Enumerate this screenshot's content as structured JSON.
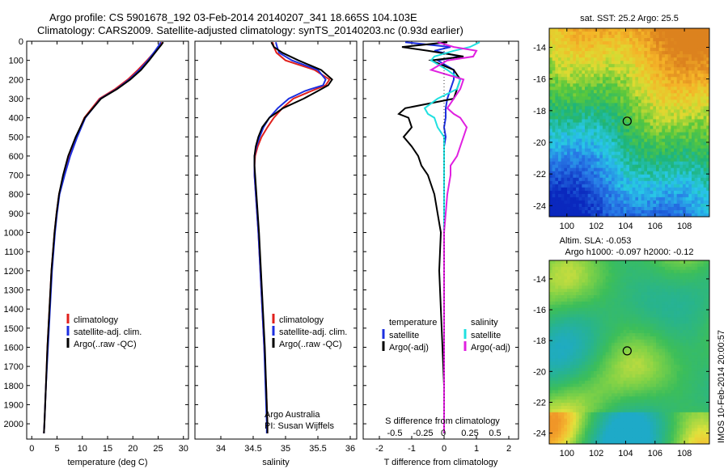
{
  "figure": {
    "title_line1": "Argo profile: CS 5901678_192 03-Feb-2014 20140207_341 18.665S 104.103E",
    "title_line2": "Climatology: CARS2009. Satellite-adjusted climatology: synTS_20140203.nc (0.93d earlier)",
    "vertical_credit": "IMOS 10-Feb-2014 20:00:57"
  },
  "colors": {
    "clim": "#e0201c",
    "sat": "#1c2fe0",
    "argo": "#000000",
    "cyan": "#20e0e0",
    "magenta": "#e020e0"
  },
  "chart_data": [
    {
      "type": "line",
      "id": "temperature",
      "xlabel": "temperature (deg C)",
      "xlim": [
        -1,
        31
      ],
      "xticks": [
        0,
        5,
        10,
        15,
        20,
        25,
        30
      ],
      "ylim": [
        0,
        2080
      ],
      "yticks": [
        0,
        100,
        200,
        300,
        400,
        500,
        600,
        700,
        800,
        900,
        1000,
        1100,
        1200,
        1300,
        1400,
        1500,
        1600,
        1700,
        1800,
        1900,
        2000
      ],
      "legend": [
        "climatology",
        "satellite-adj. clim.",
        "Argo(..raw -QC)"
      ],
      "depth": [
        5,
        20,
        50,
        100,
        150,
        200,
        250,
        300,
        400,
        500,
        600,
        700,
        800,
        900,
        1000,
        1200,
        1400,
        1600,
        1800,
        2000,
        2050
      ],
      "series": [
        {
          "name": "climatology",
          "color": "clim",
          "values": [
            25.8,
            25.5,
            24.5,
            22.8,
            21,
            19,
            16.5,
            13.4,
            10.4,
            8.8,
            7.4,
            6.3,
            5.4,
            4.9,
            4.5,
            3.9,
            3.5,
            3.1,
            2.8,
            2.5,
            2.4
          ]
        },
        {
          "name": "satellite-adj. clim.",
          "color": "sat",
          "values": [
            25.5,
            25.2,
            24.4,
            23,
            21.3,
            19.3,
            16.8,
            13.6,
            10.6,
            9,
            7.6,
            6.5,
            5.5,
            5,
            4.6,
            4,
            3.6,
            3.2,
            2.8,
            2.5,
            2.4
          ]
        },
        {
          "name": "Argo(..raw -QC)",
          "color": "argo",
          "values": [
            26,
            25.6,
            24.7,
            23.2,
            21.6,
            19.5,
            16.9,
            13.7,
            10.5,
            8.7,
            7.2,
            6.2,
            5.4,
            4.9,
            4.5,
            3.9,
            3.5,
            3.1,
            2.8,
            2.5,
            2.4
          ]
        }
      ]
    },
    {
      "type": "line",
      "id": "salinity",
      "xlabel": "salinity",
      "xlim": [
        33.6,
        36.1
      ],
      "xticks": [
        34,
        34.5,
        35,
        35.5,
        36
      ],
      "ylim": [
        0,
        2080
      ],
      "legend": [
        "climatology",
        "satellite-adj. clim.",
        "Argo(..raw -QC)"
      ],
      "annotation": [
        "Argo Australia",
        "PI: Susan Wijffels"
      ],
      "depth": [
        5,
        30,
        60,
        100,
        150,
        200,
        230,
        260,
        300,
        350,
        400,
        450,
        500,
        550,
        600,
        650,
        700,
        800,
        900,
        1000,
        1200,
        1400,
        1600,
        1800,
        2000,
        2050
      ],
      "series": [
        {
          "name": "climatology",
          "color": "clim",
          "values": [
            34.8,
            34.82,
            34.86,
            35.0,
            35.45,
            35.68,
            35.62,
            35.4,
            35.12,
            34.95,
            34.82,
            34.72,
            34.63,
            34.57,
            34.53,
            34.52,
            34.52,
            34.54,
            34.56,
            34.58,
            34.61,
            34.64,
            34.67,
            34.7,
            34.72,
            34.72
          ]
        },
        {
          "name": "satellite-adj. clim.",
          "color": "sat",
          "values": [
            34.85,
            34.87,
            34.9,
            35.1,
            35.5,
            35.62,
            35.58,
            35.3,
            35.05,
            34.88,
            34.75,
            34.66,
            34.6,
            34.55,
            34.52,
            34.52,
            34.52,
            34.54,
            34.56,
            34.58,
            34.61,
            34.64,
            34.67,
            34.69,
            34.71,
            34.71
          ]
        },
        {
          "name": "Argo(..raw -QC)",
          "color": "argo",
          "values": [
            34.78,
            34.82,
            34.95,
            35.2,
            35.55,
            35.72,
            35.66,
            35.5,
            35.28,
            34.96,
            34.75,
            34.64,
            34.58,
            34.54,
            34.52,
            34.52,
            34.53,
            34.55,
            34.57,
            34.59,
            34.62,
            34.65,
            34.68,
            34.7,
            34.72,
            34.72
          ]
        }
      ]
    },
    {
      "type": "line",
      "id": "difference",
      "xlabel": "T difference from climatology",
      "xlabel_top": "S difference from climatology",
      "xlim": [
        -2.5,
        2.3
      ],
      "xticks": [
        -2,
        -1,
        0,
        1,
        2
      ],
      "top_tick_labels": [
        "-0.5",
        "-0.25",
        "0",
        "0.25",
        "0.5"
      ],
      "legend_left_title": "temperature",
      "legend_right_title": "salinity",
      "legend_left": [
        "satellite",
        "Argo(-adj)"
      ],
      "legend_right": [
        "satellite",
        "Argo(-adj)"
      ],
      "depth": [
        5,
        30,
        50,
        80,
        100,
        150,
        200,
        250,
        300,
        350,
        380,
        400,
        450,
        500,
        550,
        600,
        650,
        700,
        800,
        900,
        1000,
        1200,
        1400,
        1600,
        1800,
        2000,
        2050
      ],
      "series": [
        {
          "name": "T satellite",
          "color": "sat",
          "values": [
            -1.2,
            0.2,
            -0.3,
            0.5,
            -0.2,
            0.3,
            0.3,
            0.2,
            0.1,
            0.05,
            0.05,
            0.05,
            0,
            0.05,
            0,
            0,
            0,
            0,
            0,
            0,
            0,
            0,
            0,
            0,
            0,
            0,
            0
          ]
        },
        {
          "name": "T Argo(-adj)",
          "color": "argo",
          "values": [
            0.1,
            -1.3,
            -0.5,
            0.6,
            -0.4,
            0.3,
            0.5,
            0.4,
            0.3,
            -1.2,
            -1.4,
            -1.1,
            -1.0,
            -1.25,
            -1.0,
            -0.8,
            -0.7,
            -0.5,
            -0.3,
            -0.2,
            -0.1,
            -0.15,
            -0.1,
            -0.05,
            0,
            0,
            0
          ]
        },
        {
          "name": "S satellite",
          "color": "cyan",
          "values": [
            1.1,
            0.8,
            0.3,
            -0.3,
            -0.4,
            0.1,
            0.5,
            0.4,
            -0.2,
            -0.6,
            -0.5,
            -0.3,
            -0.2,
            0,
            0,
            0,
            0,
            0,
            0,
            0,
            0,
            0,
            0,
            0,
            0,
            0,
            0
          ]
        },
        {
          "name": "S Argo(-adj)",
          "color": "magenta",
          "values": [
            -0.2,
            0.3,
            1.0,
            0.9,
            0.1,
            -0.4,
            0.6,
            0.5,
            0.3,
            0.1,
            0.3,
            0.5,
            0.7,
            0.6,
            0.5,
            0.4,
            0.2,
            0.2,
            0.1,
            0.05,
            0,
            0,
            0,
            0,
            0,
            0,
            0
          ]
        }
      ]
    },
    {
      "type": "heatmap",
      "id": "sst_map",
      "title": "sat. SST: 25.2  Argo: 25.5",
      "xlim": [
        98.8,
        109.7
      ],
      "ylim": [
        -24.7,
        -12.8
      ],
      "xticks": [
        100,
        102,
        104,
        106,
        108
      ],
      "yticks": [
        -14,
        -16,
        -18,
        -20,
        -22,
        -24
      ],
      "marker": [
        104.103,
        -18.665
      ]
    },
    {
      "type": "heatmap",
      "id": "sla_map",
      "title_line1": "Altim. SLA: -0.053",
      "title_line2": "Argo h1000: -0.097 h2000: -0.12",
      "xlim": [
        98.8,
        109.7
      ],
      "ylim": [
        -24.7,
        -12.8
      ],
      "xticks": [
        100,
        102,
        104,
        106,
        108
      ],
      "yticks": [
        -14,
        -16,
        -18,
        -20,
        -22,
        -24
      ],
      "marker": [
        104.103,
        -18.665
      ]
    }
  ]
}
